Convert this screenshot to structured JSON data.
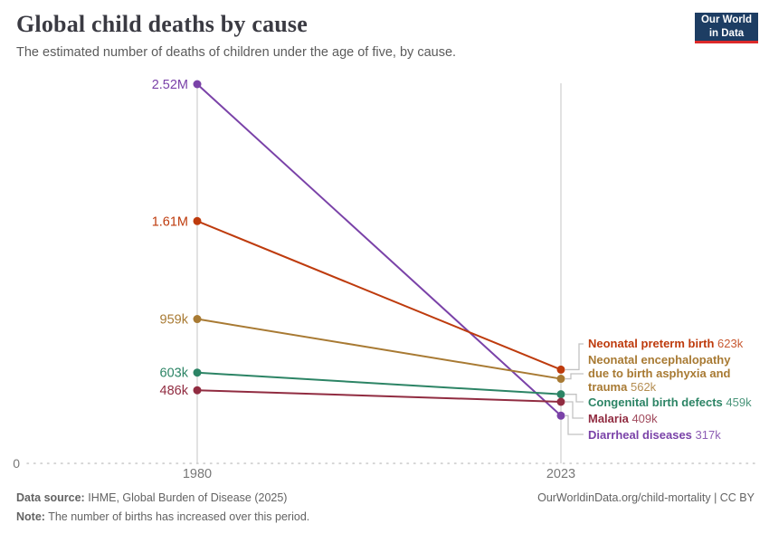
{
  "header": {
    "title": "Global child deaths by cause",
    "subtitle": "The estimated number of deaths of children under the age of five, by cause."
  },
  "logo": {
    "line1": "Our World",
    "line2": "in Data",
    "bg_color": "#1d3d63",
    "accent_color": "#dc2a2a"
  },
  "chart_data": {
    "type": "line",
    "variant": "slope",
    "title": "Global child deaths by cause",
    "x": [
      1980,
      2023
    ],
    "x_labels": [
      "1980",
      "2023"
    ],
    "y_zero_label": "0",
    "ylim": [
      0,
      2520000
    ],
    "grid": "zero-line-dotted",
    "legend_position": "right-inline-labels",
    "axis_color": "#d9d9d9",
    "gridline_color": "#c9c9c9",
    "connector_color": "#c2c2c2",
    "tick_color": "#787878",
    "series": [
      {
        "name": "Diarrheal diseases",
        "color": "#7a42a8",
        "values": [
          2520000,
          317000
        ],
        "start_label": "2.52M",
        "end_label": "317k"
      },
      {
        "name": "Neonatal preterm birth",
        "color": "#be3b0d",
        "values": [
          1610000,
          623000
        ],
        "start_label": "1.61M",
        "end_label": "623k"
      },
      {
        "name": "Neonatal encephalopathy due to birth asphyxia and trauma",
        "color": "#a87a33",
        "values": [
          959000,
          562000
        ],
        "start_label": "959k",
        "end_label": "562k"
      },
      {
        "name": "Congenital birth defects",
        "color": "#2c8465",
        "values": [
          603000,
          459000
        ],
        "start_label": "603k",
        "end_label": "459k"
      },
      {
        "name": "Malaria",
        "color": "#912c41",
        "values": [
          486000,
          409000
        ],
        "start_label": "486k",
        "end_label": "409k"
      }
    ]
  },
  "footer": {
    "datasource_label": "Data source:",
    "datasource_text": "IHME, Global Burden of Disease (2025)",
    "note_label": "Note:",
    "note_text": "The number of births has increased over this period.",
    "attribution": "OurWorldinData.org/child-mortality | CC BY"
  }
}
